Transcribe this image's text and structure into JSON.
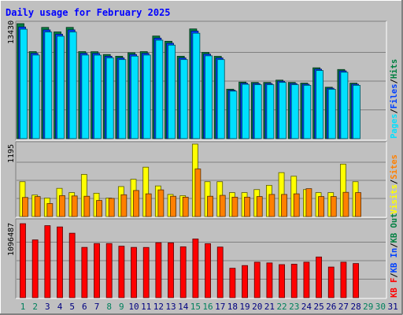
{
  "title": "Daily usage for February 2025",
  "colors": {
    "background": "#c0c0c0",
    "title_text": "#0000ff",
    "hits": "#008040",
    "files": "#0040ff",
    "pages": "#00e0ff",
    "visits": "#ffff00",
    "sites": "#ff8000",
    "kbytes": "#ff0000",
    "weekend_label": "#00805c",
    "weekday_label": "#000080"
  },
  "chart_data": [
    {
      "type": "bar",
      "name": "hits-files-pages",
      "y_tick_label": "13430",
      "ylim": [
        0,
        13430
      ],
      "legend_right": [
        {
          "text": "Pages",
          "color_key": "pages"
        },
        {
          "text": "/",
          "color_key": "separator"
        },
        {
          "text": "Files",
          "color_key": "files"
        },
        {
          "text": "/",
          "color_key": "separator"
        },
        {
          "text": "Hits",
          "color_key": "hits"
        }
      ],
      "categories": [
        "1",
        "2",
        "3",
        "4",
        "5",
        "6",
        "7",
        "8",
        "9",
        "10",
        "11",
        "12",
        "13",
        "14",
        "15",
        "16",
        "17",
        "18",
        "19",
        "20",
        "21",
        "22",
        "23",
        "24",
        "25",
        "26",
        "27",
        "28"
      ],
      "series": [
        {
          "name": "Hits",
          "values": [
            13430,
            10160,
            12990,
            12460,
            12990,
            10160,
            10150,
            9820,
            9620,
            10030,
            10160,
            11980,
            11370,
            9620,
            12810,
            10070,
            9610,
            5770,
            6600,
            6560,
            6560,
            6830,
            6560,
            6480,
            8270,
            6000,
            8070,
            6480
          ]
        },
        {
          "name": "Files",
          "values": [
            13040,
            9960,
            12700,
            12200,
            12700,
            9960,
            9950,
            9620,
            9420,
            9830,
            9960,
            11740,
            11140,
            9420,
            12560,
            9870,
            9420,
            5650,
            6470,
            6430,
            6430,
            6700,
            6430,
            6350,
            8110,
            5880,
            7910,
            6350
          ]
        },
        {
          "name": "Pages",
          "values": [
            12780,
            9760,
            12450,
            11960,
            12450,
            9760,
            9750,
            9430,
            9230,
            9630,
            9760,
            11500,
            10920,
            9230,
            12310,
            9670,
            9230,
            5540,
            6340,
            6300,
            6300,
            6560,
            6300,
            6220,
            7950,
            5760,
            7750,
            6220
          ]
        }
      ]
    },
    {
      "type": "bar",
      "name": "visits-sites",
      "y_tick_label": "1195",
      "ylim": [
        0,
        1195
      ],
      "legend_right": [
        {
          "text": "Visits",
          "color_key": "visits"
        },
        {
          "text": "/",
          "color_key": "separator"
        },
        {
          "text": "Sites",
          "color_key": "sites"
        }
      ],
      "categories": [
        "1",
        "2",
        "3",
        "4",
        "5",
        "6",
        "7",
        "8",
        "9",
        "10",
        "11",
        "12",
        "13",
        "14",
        "15",
        "16",
        "17",
        "18",
        "19",
        "20",
        "21",
        "22",
        "23",
        "24",
        "25",
        "26",
        "27",
        "28"
      ],
      "series": [
        {
          "name": "Visits",
          "values": [
            575,
            355,
            305,
            465,
            395,
            695,
            385,
            305,
            495,
            615,
            815,
            505,
            365,
            345,
            1195,
            575,
            575,
            395,
            395,
            445,
            515,
            725,
            665,
            445,
            395,
            395,
            865,
            575
          ]
        },
        {
          "name": "Sites",
          "values": [
            315,
            330,
            215,
            345,
            340,
            335,
            265,
            300,
            360,
            430,
            375,
            440,
            335,
            320,
            785,
            335,
            350,
            320,
            320,
            330,
            365,
            365,
            375,
            460,
            330,
            330,
            400,
            395
          ]
        }
      ]
    },
    {
      "type": "bar",
      "name": "kbytes",
      "y_tick_label": "1096487",
      "ylim": [
        0,
        1096487
      ],
      "legend_right": [
        {
          "text": "KB F",
          "color_key": "kbytes"
        },
        {
          "text": "/",
          "color_key": "separator"
        },
        {
          "text": "KB In",
          "color_key": "files"
        },
        {
          "text": "/",
          "color_key": "separator"
        },
        {
          "text": "KB Out",
          "color_key": "hits"
        }
      ],
      "categories": [
        "1",
        "2",
        "3",
        "4",
        "5",
        "6",
        "7",
        "8",
        "9",
        "10",
        "11",
        "12",
        "13",
        "14",
        "15",
        "16",
        "17",
        "18",
        "19",
        "20",
        "21",
        "22",
        "23",
        "24",
        "25",
        "26",
        "27",
        "28"
      ],
      "series": [
        {
          "name": "KB F",
          "values": [
            1096487,
            856000,
            1067000,
            1048000,
            955000,
            745000,
            802000,
            802000,
            763000,
            745000,
            744000,
            814000,
            812000,
            754000,
            870000,
            800000,
            750000,
            436000,
            476000,
            526000,
            515000,
            490000,
            496000,
            526000,
            603000,
            454000,
            526000,
            506000
          ]
        }
      ]
    }
  ],
  "x_axis": {
    "days": [
      {
        "label": "1",
        "weekend": true
      },
      {
        "label": "2",
        "weekend": true
      },
      {
        "label": "3",
        "weekend": false
      },
      {
        "label": "4",
        "weekend": false
      },
      {
        "label": "5",
        "weekend": false
      },
      {
        "label": "6",
        "weekend": false
      },
      {
        "label": "7",
        "weekend": false
      },
      {
        "label": "8",
        "weekend": true
      },
      {
        "label": "9",
        "weekend": true
      },
      {
        "label": "10",
        "weekend": false
      },
      {
        "label": "11",
        "weekend": false
      },
      {
        "label": "12",
        "weekend": false
      },
      {
        "label": "13",
        "weekend": false
      },
      {
        "label": "14",
        "weekend": false
      },
      {
        "label": "15",
        "weekend": true
      },
      {
        "label": "16",
        "weekend": true
      },
      {
        "label": "17",
        "weekend": false
      },
      {
        "label": "18",
        "weekend": false
      },
      {
        "label": "19",
        "weekend": false
      },
      {
        "label": "20",
        "weekend": false
      },
      {
        "label": "21",
        "weekend": false
      },
      {
        "label": "22",
        "weekend": true
      },
      {
        "label": "23",
        "weekend": true
      },
      {
        "label": "24",
        "weekend": false
      },
      {
        "label": "25",
        "weekend": false
      },
      {
        "label": "26",
        "weekend": false
      },
      {
        "label": "27",
        "weekend": false
      },
      {
        "label": "28",
        "weekend": false
      },
      {
        "label": "29",
        "weekend": true
      },
      {
        "label": "30",
        "weekend": true
      },
      {
        "label": "31",
        "weekend": false
      }
    ]
  }
}
